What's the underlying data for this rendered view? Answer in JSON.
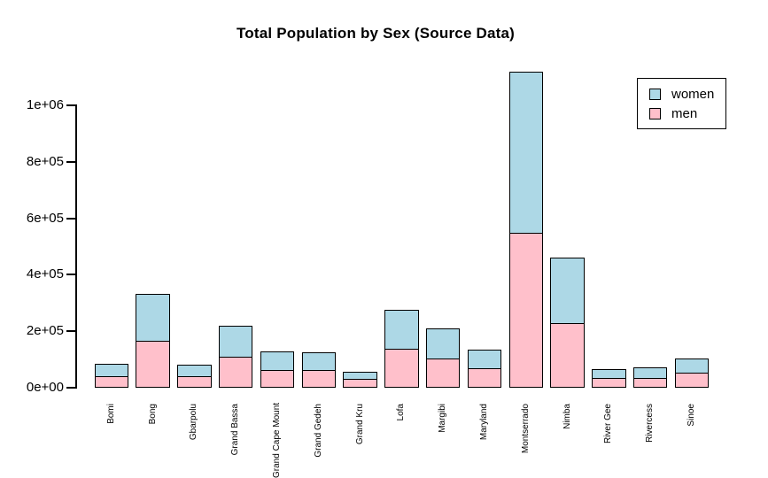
{
  "chart_data": {
    "type": "bar",
    "stacked": true,
    "title": "Total Population by Sex (Source Data)",
    "categories": [
      "Bomi",
      "Bong",
      "Gbarpolu",
      "Grand Bassa",
      "Grand Cape Mount",
      "Grand Gedeh",
      "Grand Kru",
      "Lofa",
      "Margibi",
      "Maryland",
      "Montserrado",
      "Nimba",
      "River Gee",
      "Rivercess",
      "Sinoe"
    ],
    "series": [
      {
        "name": "men",
        "color": "#FFC0CB",
        "values": [
          42000,
          165000,
          42000,
          110000,
          64000,
          64000,
          30000,
          137000,
          104000,
          68000,
          550000,
          230000,
          34000,
          36000,
          53000
        ]
      },
      {
        "name": "women",
        "color": "#ADD8E6",
        "values": [
          42000,
          168000,
          41000,
          111000,
          63000,
          61000,
          27000,
          140000,
          106000,
          68000,
          568000,
          232000,
          33000,
          35000,
          49000
        ]
      }
    ],
    "totals": [
      84000,
      333000,
      83000,
      221000,
      127000,
      125000,
      57000,
      277000,
      210000,
      136000,
      1118000,
      462000,
      67000,
      71000,
      102000
    ],
    "xlabel": "",
    "ylabel": "",
    "y_axis": {
      "tick_labels": [
        "0e+00",
        "2e+05",
        "4e+05",
        "6e+05",
        "8e+05",
        "1e+06"
      ],
      "tick_values": [
        0,
        200000,
        400000,
        600000,
        800000,
        1000000
      ],
      "range": [
        0,
        1120000
      ]
    },
    "x_axis": {
      "label_rotation": 90
    },
    "grid": false,
    "legend": {
      "position": "top-right",
      "entries": [
        {
          "label": "women",
          "color": "#ADD8E6"
        },
        {
          "label": "men",
          "color": "#FFC0CB"
        }
      ]
    },
    "colors": {
      "bar_border": "#000000",
      "background": "#FFFFFF",
      "text": "#000000"
    }
  }
}
